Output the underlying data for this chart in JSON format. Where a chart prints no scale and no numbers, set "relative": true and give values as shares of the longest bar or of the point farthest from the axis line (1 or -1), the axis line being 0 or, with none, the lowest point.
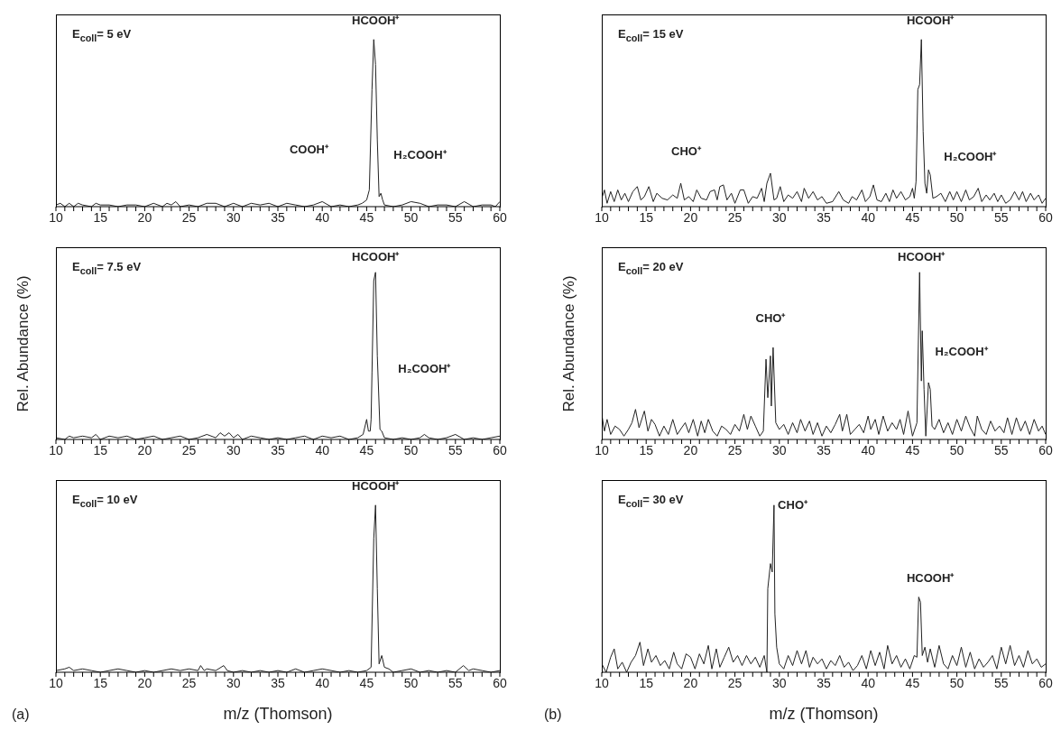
{
  "chart_data": [
    {
      "type": "line",
      "relative": true,
      "title": "E$_{coll}$= 5 eV",
      "color": "#222222",
      "xlim": [
        10,
        60
      ],
      "xticks": [
        10,
        {
          "value": 11,
          "label": null
        },
        {
          "value": 12,
          "label": null
        },
        {
          "value": 13,
          "label": null
        },
        {
          "value": 14,
          "label": null
        },
        15,
        {
          "value": 16,
          "label": null
        },
        {
          "value": 17,
          "label": null
        },
        {
          "value": 18,
          "label": null
        },
        {
          "value": 19,
          "label": null
        },
        20,
        {
          "value": 21,
          "label": null
        },
        {
          "value": 22,
          "label": null
        },
        {
          "value": 23,
          "label": null
        },
        {
          "value": 24,
          "label": null
        },
        25,
        {
          "value": 26,
          "label": null
        },
        {
          "value": 27,
          "label": null
        },
        {
          "value": 28,
          "label": null
        },
        {
          "value": 29,
          "label": null
        },
        30,
        {
          "value": 31,
          "label": null
        },
        {
          "value": 32,
          "label": null
        },
        {
          "value": 33,
          "label": null
        },
        {
          "value": 34,
          "label": null
        },
        35,
        {
          "value": 36,
          "label": null
        },
        {
          "value": 37,
          "label": null
        },
        {
          "value": 38,
          "label": null
        },
        {
          "value": 39,
          "label": null
        },
        40,
        {
          "value": 41,
          "label": null
        },
        {
          "value": 42,
          "label": null
        },
        {
          "value": 43,
          "label": null
        },
        {
          "value": 44,
          "label": null
        },
        45,
        {
          "value": 46,
          "label": null
        },
        {
          "value": 47,
          "label": null
        },
        {
          "value": 48,
          "label": null
        },
        {
          "value": 49,
          "label": null
        },
        50,
        {
          "value": 51,
          "label": null
        },
        {
          "value": 52,
          "label": null
        },
        {
          "value": 53,
          "label": null
        },
        {
          "value": 54,
          "label": null
        },
        55,
        {
          "value": 56,
          "label": null
        },
        {
          "value": 57,
          "label": null
        },
        {
          "value": 58,
          "label": null
        },
        {
          "value": 59,
          "label": null
        },
        60
      ],
      "x": [
        10,
        10.5,
        11,
        11.5,
        12,
        12.5,
        13,
        14,
        14.5,
        15,
        16,
        17,
        18,
        19,
        20,
        21,
        22,
        22.5,
        23,
        23.5,
        24,
        25,
        26,
        27,
        28,
        29,
        30,
        31,
        32,
        33,
        34,
        35,
        36,
        37,
        38,
        39,
        40,
        41,
        42,
        43,
        44,
        44.5,
        45,
        45.3,
        45.6,
        45.8,
        46,
        46.2,
        46.4,
        46.6,
        46.8,
        47,
        48,
        49,
        50,
        51,
        52,
        53,
        54,
        55,
        56,
        57,
        58,
        59,
        59.5,
        60
      ],
      "values": [
        0.01,
        0.02,
        0,
        0.02,
        0,
        0.02,
        0.01,
        0,
        0.02,
        0.01,
        0.01,
        0,
        0.01,
        0.01,
        0,
        0.02,
        0,
        0.02,
        0.01,
        0.03,
        0,
        0.01,
        0,
        0.02,
        0.02,
        0,
        0.02,
        0,
        0.02,
        0.01,
        0.02,
        0,
        0.02,
        0.01,
        0,
        0.01,
        0.03,
        0,
        0.01,
        0,
        0.01,
        0.02,
        0.04,
        0.1,
        0.7,
        1,
        0.85,
        0.4,
        0.06,
        0.08,
        0.04,
        0.01,
        0,
        0.01,
        0.03,
        0.02,
        0,
        0.01,
        0.01,
        0,
        0.03,
        0,
        0.01,
        0.01,
        0,
        0.03
      ],
      "annotations": [
        "HCOOH⁺",
        "COOH⁺",
        "H₂COOH⁺"
      ]
    },
    {
      "type": "line",
      "relative": true,
      "title": "E$_{coll}$= 15 eV",
      "color": "#222222",
      "xlim": [
        10,
        60
      ],
      "xticks": [
        10,
        {
          "value": 11,
          "label": null
        },
        {
          "value": 12,
          "label": null
        },
        {
          "value": 13,
          "label": null
        },
        {
          "value": 14,
          "label": null
        },
        15,
        {
          "value": 16,
          "label": null
        },
        {
          "value": 17,
          "label": null
        },
        {
          "value": 18,
          "label": null
        },
        {
          "value": 19,
          "label": null
        },
        20,
        {
          "value": 21,
          "label": null
        },
        {
          "value": 22,
          "label": null
        },
        {
          "value": 23,
          "label": null
        },
        {
          "value": 24,
          "label": null
        },
        25,
        {
          "value": 26,
          "label": null
        },
        {
          "value": 27,
          "label": null
        },
        {
          "value": 28,
          "label": null
        },
        {
          "value": 29,
          "label": null
        },
        30,
        {
          "value": 31,
          "label": null
        },
        {
          "value": 32,
          "label": null
        },
        {
          "value": 33,
          "label": null
        },
        {
          "value": 34,
          "label": null
        },
        35,
        {
          "value": 36,
          "label": null
        },
        {
          "value": 37,
          "label": null
        },
        {
          "value": 38,
          "label": null
        },
        {
          "value": 39,
          "label": null
        },
        40,
        {
          "value": 41,
          "label": null
        },
        {
          "value": 42,
          "label": null
        },
        {
          "value": 43,
          "label": null
        },
        {
          "value": 44,
          "label": null
        },
        45,
        {
          "value": 46,
          "label": null
        },
        {
          "value": 47,
          "label": null
        },
        {
          "value": 48,
          "label": null
        },
        {
          "value": 49,
          "label": null
        },
        50,
        {
          "value": 51,
          "label": null
        },
        {
          "value": 52,
          "label": null
        },
        {
          "value": 53,
          "label": null
        },
        {
          "value": 54,
          "label": null
        },
        55,
        {
          "value": 56,
          "label": null
        },
        {
          "value": 57,
          "label": null
        },
        {
          "value": 58,
          "label": null
        },
        {
          "value": 59,
          "label": null
        },
        60
      ],
      "x": [
        10,
        10.3,
        10.6,
        11,
        11.4,
        11.8,
        12.2,
        12.6,
        13,
        13.5,
        14,
        14.4,
        14.8,
        15.3,
        15.8,
        16.2,
        16.8,
        17.4,
        18,
        18.5,
        18.9,
        19.3,
        19.8,
        20.3,
        20.7,
        21.2,
        21.8,
        22.2,
        22.7,
        23,
        23.3,
        23.7,
        24.1,
        24.6,
        25,
        25.6,
        26,
        26.5,
        27,
        27.5,
        28,
        28.3,
        28.6,
        29,
        29.4,
        29.7,
        30.1,
        30.5,
        31,
        31.5,
        32,
        32.5,
        32.8,
        33.3,
        33.8,
        34.3,
        34.8,
        35.3,
        36,
        36.7,
        37.2,
        37.8,
        38.2,
        38.7,
        39.3,
        39.7,
        40.2,
        40.6,
        41,
        41.5,
        42,
        42.4,
        42.8,
        43.2,
        43.7,
        44.2,
        44.7,
        45,
        45.2,
        45.4,
        45.6,
        45.8,
        46,
        46.2,
        46.4,
        46.6,
        46.8,
        47,
        47.3,
        47.7,
        48.2,
        48.7,
        49.2,
        49.6,
        50,
        50.5,
        51,
        51.4,
        51.9,
        52.4,
        52.8,
        53.3,
        53.7,
        54.2,
        54.6,
        55,
        55.5,
        56,
        56.5,
        57,
        57.4,
        57.8,
        58.3,
        58.7,
        59.2,
        59.6,
        60
      ],
      "values": [
        0.05,
        0.1,
        0.02,
        0.09,
        0.03,
        0.1,
        0.04,
        0.08,
        0.03,
        0.09,
        0.12,
        0.04,
        0.06,
        0.12,
        0.03,
        0.08,
        0.05,
        0.04,
        0.07,
        0.05,
        0.14,
        0.04,
        0.06,
        0.03,
        0.1,
        0.05,
        0.04,
        0.09,
        0.1,
        0.04,
        0.12,
        0.13,
        0.04,
        0.08,
        0.02,
        0.1,
        0.1,
        0.02,
        0.06,
        0.05,
        0.11,
        0.03,
        0.14,
        0.2,
        0.04,
        0.05,
        0.12,
        0.03,
        0.07,
        0.05,
        0.09,
        0.03,
        0.11,
        0.05,
        0.09,
        0.04,
        0.06,
        0.02,
        0.03,
        0.09,
        0.04,
        0.02,
        0.06,
        0.04,
        0.1,
        0.03,
        0.06,
        0.13,
        0.04,
        0.03,
        0.08,
        0.03,
        0.1,
        0.05,
        0.09,
        0.04,
        0.06,
        0.11,
        0.05,
        0.15,
        0.7,
        0.73,
        1,
        0.45,
        0.14,
        0.08,
        0.22,
        0.19,
        0.05,
        0.06,
        0.08,
        0.03,
        0.09,
        0.04,
        0.09,
        0.03,
        0.1,
        0.04,
        0.06,
        0.11,
        0.03,
        0.07,
        0.04,
        0.08,
        0.03,
        0.07,
        0.02,
        0.04,
        0.09,
        0.04,
        0.09,
        0.03,
        0.08,
        0.04,
        0.07,
        0.02,
        0.05
      ],
      "annotations": [
        "CHO⁺",
        "HCOOH⁺",
        "H₂COOH⁺"
      ]
    },
    {
      "type": "line",
      "relative": true,
      "title": "E$_{coll}$= 7.5 eV",
      "ylabel": "Rel. Abundance (%)",
      "color": "#222222",
      "xlim": [
        10,
        60
      ],
      "xticks": [
        10,
        {
          "value": 11,
          "label": null
        },
        {
          "value": 12,
          "label": null
        },
        {
          "value": 13,
          "label": null
        },
        {
          "value": 14,
          "label": null
        },
        15,
        {
          "value": 16,
          "label": null
        },
        {
          "value": 17,
          "label": null
        },
        {
          "value": 18,
          "label": null
        },
        {
          "value": 19,
          "label": null
        },
        20,
        {
          "value": 21,
          "label": null
        },
        {
          "value": 22,
          "label": null
        },
        {
          "value": 23,
          "label": null
        },
        {
          "value": 24,
          "label": null
        },
        25,
        {
          "value": 26,
          "label": null
        },
        {
          "value": 27,
          "label": null
        },
        {
          "value": 28,
          "label": null
        },
        {
          "value": 29,
          "label": null
        },
        30,
        {
          "value": 31,
          "label": null
        },
        {
          "value": 32,
          "label": null
        },
        {
          "value": 33,
          "label": null
        },
        {
          "value": 34,
          "label": null
        },
        35,
        {
          "value": 36,
          "label": null
        },
        {
          "value": 37,
          "label": null
        },
        {
          "value": 38,
          "label": null
        },
        {
          "value": 39,
          "label": null
        },
        40,
        {
          "value": 41,
          "label": null
        },
        {
          "value": 42,
          "label": null
        },
        {
          "value": 43,
          "label": null
        },
        {
          "value": 44,
          "label": null
        },
        45,
        {
          "value": 46,
          "label": null
        },
        {
          "value": 47,
          "label": null
        },
        {
          "value": 48,
          "label": null
        },
        {
          "value": 49,
          "label": null
        },
        50,
        {
          "value": 51,
          "label": null
        },
        {
          "value": 52,
          "label": null
        },
        {
          "value": 53,
          "label": null
        },
        {
          "value": 54,
          "label": null
        },
        55,
        {
          "value": 56,
          "label": null
        },
        {
          "value": 57,
          "label": null
        },
        {
          "value": 58,
          "label": null
        },
        {
          "value": 59,
          "label": null
        },
        60
      ],
      "x": [
        10,
        11,
        11.5,
        12,
        13,
        14,
        14.5,
        15,
        16,
        17,
        18,
        19,
        20,
        21,
        22,
        23,
        24,
        25,
        26,
        27,
        28,
        28.5,
        29,
        29.5,
        30,
        30.5,
        31,
        32,
        33,
        34,
        35,
        36,
        37,
        38,
        39,
        40,
        41,
        42,
        43,
        44,
        44.6,
        45,
        45.2,
        45.4,
        45.5,
        45.6,
        45.8,
        46,
        46.2,
        46.5,
        46.7,
        47,
        48,
        49,
        50,
        51,
        51.5,
        52,
        53,
        54,
        55,
        56,
        57,
        58,
        59,
        60
      ],
      "values": [
        0.01,
        0,
        0.02,
        0.01,
        0.02,
        0.01,
        0.03,
        0,
        0.02,
        0.01,
        0.02,
        0,
        0.01,
        0.02,
        0,
        0.01,
        0.02,
        0,
        0.01,
        0.03,
        0.01,
        0.04,
        0.02,
        0.04,
        0.01,
        0.03,
        0,
        0.02,
        0.01,
        0,
        0.01,
        0,
        0.01,
        0.02,
        0,
        0.02,
        0.01,
        0.02,
        0,
        0.01,
        0.03,
        0.12,
        0.05,
        0.05,
        0.12,
        0.4,
        0.95,
        1,
        0.5,
        0.06,
        0.05,
        0.01,
        0,
        0.01,
        0,
        0.01,
        0.03,
        0.01,
        0,
        0.01,
        0.03,
        0,
        0.01,
        0,
        0.01,
        0.02
      ],
      "annotations": [
        "HCOOH⁺",
        "H₂COOH⁺"
      ]
    },
    {
      "type": "line",
      "relative": true,
      "title": "E$_{coll}$= 20 eV",
      "ylabel": "Rel. Abundance (%)",
      "color": "#222222",
      "xlim": [
        10,
        60
      ],
      "xticks": [
        10,
        {
          "value": 11,
          "label": null
        },
        {
          "value": 12,
          "label": null
        },
        {
          "value": 13,
          "label": null
        },
        {
          "value": 14,
          "label": null
        },
        15,
        {
          "value": 16,
          "label": null
        },
        {
          "value": 17,
          "label": null
        },
        {
          "value": 18,
          "label": null
        },
        {
          "value": 19,
          "label": null
        },
        20,
        {
          "value": 21,
          "label": null
        },
        {
          "value": 22,
          "label": null
        },
        {
          "value": 23,
          "label": null
        },
        {
          "value": 24,
          "label": null
        },
        25,
        {
          "value": 26,
          "label": null
        },
        {
          "value": 27,
          "label": null
        },
        {
          "value": 28,
          "label": null
        },
        {
          "value": 29,
          "label": null
        },
        30,
        {
          "value": 31,
          "label": null
        },
        {
          "value": 32,
          "label": null
        },
        {
          "value": 33,
          "label": null
        },
        {
          "value": 34,
          "label": null
        },
        35,
        {
          "value": 36,
          "label": null
        },
        {
          "value": 37,
          "label": null
        },
        {
          "value": 38,
          "label": null
        },
        {
          "value": 39,
          "label": null
        },
        40,
        {
          "value": 41,
          "label": null
        },
        {
          "value": 42,
          "label": null
        },
        {
          "value": 43,
          "label": null
        },
        {
          "value": 44,
          "label": null
        },
        45,
        {
          "value": 46,
          "label": null
        },
        {
          "value": 47,
          "label": null
        },
        {
          "value": 48,
          "label": null
        },
        {
          "value": 49,
          "label": null
        },
        50,
        {
          "value": 51,
          "label": null
        },
        {
          "value": 52,
          "label": null
        },
        {
          "value": 53,
          "label": null
        },
        {
          "value": 54,
          "label": null
        },
        55,
        {
          "value": 56,
          "label": null
        },
        {
          "value": 57,
          "label": null
        },
        {
          "value": 58,
          "label": null
        },
        {
          "value": 59,
          "label": null
        },
        60
      ],
      "x": [
        10,
        10.3,
        10.6,
        11,
        11.5,
        12,
        12.5,
        13,
        13.4,
        13.8,
        14.2,
        14.8,
        15.2,
        15.6,
        16,
        16.5,
        17,
        17.5,
        18,
        18.5,
        19,
        19.4,
        19.8,
        20.3,
        20.8,
        21.2,
        21.6,
        22,
        22.5,
        23,
        23.5,
        24,
        24.5,
        25,
        25.5,
        26,
        26.4,
        26.8,
        27.3,
        27.8,
        28.2,
        28.5,
        28.7,
        29,
        29.1,
        29.3,
        29.6,
        30,
        30.5,
        31,
        31.5,
        32,
        32.4,
        32.9,
        33.4,
        33.8,
        34.3,
        34.8,
        35.3,
        35.8,
        36.3,
        36.8,
        37.1,
        37.6,
        38,
        38.5,
        39,
        39.5,
        40,
        40.3,
        40.8,
        41.2,
        41.7,
        42.2,
        42.7,
        43.2,
        43.6,
        44,
        44.5,
        45,
        45.5,
        45.8,
        46,
        46.1,
        46.3,
        46.5,
        46.8,
        47,
        47.2,
        47.5,
        48,
        48.5,
        49,
        49.5,
        50,
        50.5,
        51,
        51.5,
        52,
        52.3,
        52.8,
        53.3,
        53.8,
        54.3,
        54.8,
        55.3,
        55.7,
        56.2,
        56.7,
        57.2,
        57.7,
        58.2,
        58.7,
        59.2,
        59.6,
        60
      ],
      "values": [
        0.15,
        0.05,
        0.12,
        0.03,
        0.08,
        0.06,
        0.02,
        0.06,
        0.1,
        0.18,
        0.07,
        0.17,
        0.05,
        0.12,
        0.09,
        0.02,
        0.08,
        0.03,
        0.12,
        0.03,
        0.07,
        0.1,
        0.04,
        0.12,
        0.02,
        0.11,
        0.04,
        0.12,
        0.05,
        0.02,
        0.08,
        0.06,
        0.03,
        0.09,
        0.05,
        0.15,
        0.06,
        0.14,
        0.08,
        0.02,
        0.05,
        0.48,
        0.25,
        0.5,
        0.2,
        0.55,
        0.1,
        0.06,
        0.09,
        0.03,
        0.1,
        0.04,
        0.12,
        0.05,
        0.11,
        0.03,
        0.1,
        0.02,
        0.08,
        0.04,
        0.09,
        0.15,
        0.05,
        0.15,
        0.03,
        0.06,
        0.09,
        0.04,
        0.14,
        0.06,
        0.12,
        0.03,
        0.14,
        0.05,
        0.1,
        0.06,
        0.12,
        0.03,
        0.17,
        0.02,
        0.1,
        1,
        0.35,
        0.65,
        0.3,
        0.02,
        0.34,
        0.3,
        0.08,
        0.06,
        0.12,
        0.04,
        0.1,
        0.03,
        0.12,
        0.05,
        0.14,
        0.07,
        0.02,
        0.14,
        0.06,
        0.03,
        0.11,
        0.05,
        0.08,
        0.04,
        0.13,
        0.03,
        0.13,
        0.05,
        0.11,
        0.03,
        0.12,
        0.05,
        0.08,
        0.03
      ],
      "annotations": [
        "CHO⁺",
        "HCOOH⁺",
        "H₂COOH⁺"
      ]
    },
    {
      "type": "line",
      "relative": true,
      "title": "E$_{coll}$= 10 eV",
      "xlabel": "m/z (Thomson)",
      "color": "#222222",
      "xlim": [
        10,
        60
      ],
      "xticks": [
        10,
        {
          "value": 11,
          "label": null
        },
        {
          "value": 12,
          "label": null
        },
        {
          "value": 13,
          "label": null
        },
        {
          "value": 14,
          "label": null
        },
        15,
        {
          "value": 16,
          "label": null
        },
        {
          "value": 17,
          "label": null
        },
        {
          "value": 18,
          "label": null
        },
        {
          "value": 19,
          "label": null
        },
        20,
        {
          "value": 21,
          "label": null
        },
        {
          "value": 22,
          "label": null
        },
        {
          "value": 23,
          "label": null
        },
        {
          "value": 24,
          "label": null
        },
        25,
        {
          "value": 26,
          "label": null
        },
        {
          "value": 27,
          "label": null
        },
        {
          "value": 28,
          "label": null
        },
        {
          "value": 29,
          "label": null
        },
        30,
        {
          "value": 31,
          "label": null
        },
        {
          "value": 32,
          "label": null
        },
        {
          "value": 33,
          "label": null
        },
        {
          "value": 34,
          "label": null
        },
        35,
        {
          "value": 36,
          "label": null
        },
        {
          "value": 37,
          "label": null
        },
        {
          "value": 38,
          "label": null
        },
        {
          "value": 39,
          "label": null
        },
        40,
        {
          "value": 41,
          "label": null
        },
        {
          "value": 42,
          "label": null
        },
        {
          "value": 43,
          "label": null
        },
        {
          "value": 44,
          "label": null
        },
        45,
        {
          "value": 46,
          "label": null
        },
        {
          "value": 47,
          "label": null
        },
        {
          "value": 48,
          "label": null
        },
        {
          "value": 49,
          "label": null
        },
        50,
        {
          "value": 51,
          "label": null
        },
        {
          "value": 52,
          "label": null
        },
        {
          "value": 53,
          "label": null
        },
        {
          "value": 54,
          "label": null
        },
        55,
        {
          "value": 56,
          "label": null
        },
        {
          "value": 57,
          "label": null
        },
        {
          "value": 58,
          "label": null
        },
        {
          "value": 59,
          "label": null
        },
        60
      ],
      "x": [
        10,
        11,
        11.5,
        12,
        13,
        14,
        15,
        16,
        17,
        18,
        19,
        20,
        21,
        22,
        23,
        24,
        25,
        26,
        26.3,
        26.7,
        27,
        28,
        28.6,
        28.9,
        29.3,
        30,
        31,
        32,
        33,
        34,
        35,
        36,
        37,
        38,
        39,
        40,
        41,
        42,
        43,
        44,
        45,
        45.5,
        45.8,
        46,
        46.2,
        46.4,
        46.7,
        47,
        47.5,
        48,
        49,
        50,
        51,
        52,
        53,
        54,
        55,
        55.9,
        56.5,
        57,
        58,
        59,
        60
      ],
      "values": [
        0.01,
        0.02,
        0.03,
        0.01,
        0.02,
        0.01,
        0,
        0.01,
        0.02,
        0.01,
        0,
        0.01,
        0,
        0.01,
        0.02,
        0.01,
        0.02,
        0.01,
        0.04,
        0.01,
        0.02,
        0.01,
        0.03,
        0.04,
        0.01,
        0,
        0.01,
        0,
        0.01,
        0,
        0.01,
        0,
        0.02,
        0,
        0.01,
        0.02,
        0.01,
        0,
        0.01,
        0,
        0.01,
        0.03,
        0.8,
        1,
        0.5,
        0.05,
        0.1,
        0.03,
        0.02,
        0,
        0.01,
        0.02,
        0,
        0.01,
        0,
        0.01,
        0,
        0.04,
        0.01,
        0.02,
        0.01,
        0,
        0.01
      ],
      "annotations": [
        "HCOOH⁺",
        "(a)"
      ]
    },
    {
      "type": "line",
      "relative": true,
      "title": "E$_{coll}$= 30 eV",
      "xlabel": "m/z (Thomson)",
      "color": "#222222",
      "xlim": [
        10,
        60
      ],
      "xticks": [
        10,
        {
          "value": 11,
          "label": null
        },
        {
          "value": 12,
          "label": null
        },
        {
          "value": 13,
          "label": null
        },
        {
          "value": 14,
          "label": null
        },
        15,
        {
          "value": 16,
          "label": null
        },
        {
          "value": 17,
          "label": null
        },
        {
          "value": 18,
          "label": null
        },
        {
          "value": 19,
          "label": null
        },
        20,
        {
          "value": 21,
          "label": null
        },
        {
          "value": 22,
          "label": null
        },
        {
          "value": 23,
          "label": null
        },
        {
          "value": 24,
          "label": null
        },
        25,
        {
          "value": 26,
          "label": null
        },
        {
          "value": 27,
          "label": null
        },
        {
          "value": 28,
          "label": null
        },
        {
          "value": 29,
          "label": null
        },
        30,
        {
          "value": 31,
          "label": null
        },
        {
          "value": 32,
          "label": null
        },
        {
          "value": 33,
          "label": null
        },
        {
          "value": 34,
          "label": null
        },
        35,
        {
          "value": 36,
          "label": null
        },
        {
          "value": 37,
          "label": null
        },
        {
          "value": 38,
          "label": null
        },
        {
          "value": 39,
          "label": null
        },
        40,
        {
          "value": 41,
          "label": null
        },
        {
          "value": 42,
          "label": null
        },
        {
          "value": 43,
          "label": null
        },
        {
          "value": 44,
          "label": null
        },
        45,
        {
          "value": 46,
          "label": null
        },
        {
          "value": 47,
          "label": null
        },
        {
          "value": 48,
          "label": null
        },
        {
          "value": 49,
          "label": null
        },
        50,
        {
          "value": 51,
          "label": null
        },
        {
          "value": 52,
          "label": null
        },
        {
          "value": 53,
          "label": null
        },
        {
          "value": 54,
          "label": null
        },
        55,
        {
          "value": 56,
          "label": null
        },
        {
          "value": 57,
          "label": null
        },
        {
          "value": 58,
          "label": null
        },
        {
          "value": 59,
          "label": null
        },
        60
      ],
      "x": [
        10,
        10.5,
        11,
        11.4,
        11.8,
        12.3,
        12.8,
        13.3,
        13.8,
        14.3,
        14.7,
        15.2,
        15.6,
        16.1,
        16.6,
        17.1,
        17.6,
        18.1,
        18.5,
        19,
        19.5,
        20,
        20.5,
        21,
        21.5,
        22,
        22.4,
        22.9,
        23.3,
        23.8,
        24.3,
        24.8,
        25.3,
        25.8,
        26.3,
        26.8,
        27.3,
        27.8,
        28.3,
        28.6,
        28.7,
        29,
        29.2,
        29.4,
        29.5,
        29.7,
        30,
        30.5,
        31,
        31.5,
        32,
        32.5,
        33,
        33.4,
        33.8,
        34.3,
        34.8,
        35.3,
        35.8,
        36.3,
        36.8,
        37.3,
        37.8,
        38.3,
        38.8,
        39.3,
        39.8,
        40.3,
        40.8,
        41.3,
        41.8,
        42.2,
        42.7,
        43.2,
        43.7,
        44.2,
        44.7,
        45.2,
        45.5,
        45.7,
        45.9,
        46.1,
        46.4,
        46.7,
        47,
        47.5,
        48,
        48.5,
        49,
        49.5,
        50,
        50.5,
        51,
        51.5,
        52,
        52.5,
        53,
        53.5,
        54,
        54.5,
        55,
        55.5,
        56,
        56.5,
        57,
        57.5,
        58,
        58.5,
        59,
        59.5,
        60
      ],
      "values": [
        0.05,
        0,
        0.09,
        0.14,
        0.02,
        0.06,
        0,
        0.06,
        0.1,
        0.18,
        0.04,
        0.14,
        0.06,
        0.1,
        0.04,
        0.07,
        0.02,
        0.12,
        0.05,
        0.02,
        0.11,
        0.09,
        0.02,
        0.11,
        0.05,
        0.16,
        0.02,
        0.14,
        0.03,
        0.09,
        0.15,
        0.06,
        0.1,
        0.04,
        0.1,
        0.05,
        0.09,
        0.03,
        0.1,
        0,
        0.5,
        0.65,
        0.6,
        1,
        0.35,
        0.15,
        0.05,
        0.02,
        0.1,
        0.04,
        0.13,
        0.05,
        0.13,
        0.03,
        0.09,
        0.05,
        0.08,
        0.02,
        0.07,
        0.04,
        0.1,
        0.03,
        0.06,
        0.01,
        0.04,
        0.1,
        0.02,
        0.13,
        0.04,
        0.12,
        0.02,
        0.16,
        0.05,
        0.1,
        0.03,
        0.08,
        0.02,
        0.1,
        0.09,
        0.45,
        0.42,
        0.1,
        0.15,
        0.06,
        0.14,
        0.03,
        0.16,
        0.05,
        0.02,
        0.1,
        0.04,
        0.15,
        0.03,
        0.12,
        0.02,
        0.08,
        0.03,
        0.06,
        0.1,
        0.02,
        0.15,
        0.05,
        0.16,
        0.04,
        0.1,
        0.03,
        0.13,
        0.05,
        0.08,
        0.03,
        0.05
      ],
      "annotations": [
        "CHO⁺",
        "HCOOH⁺",
        "(b)"
      ]
    }
  ]
}
